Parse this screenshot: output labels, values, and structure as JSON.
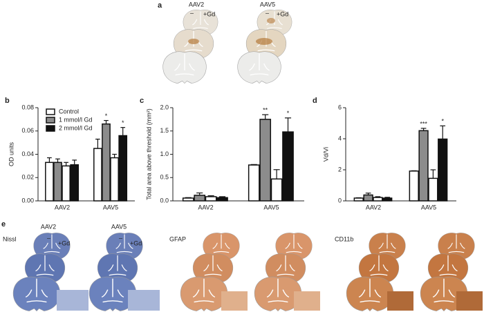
{
  "panel_a": {
    "label": "a",
    "columns": [
      "AAV2",
      "AAV5"
    ],
    "minus": "–",
    "plus": "+Gd"
  },
  "panel_e": {
    "label": "e",
    "columns": [
      "AAV2",
      "AAV5"
    ],
    "stains": [
      "Nissl",
      "GFAP",
      "CD11b"
    ],
    "minus": "–",
    "plus": "+Gd"
  },
  "chart_data": [
    {
      "type": "bar",
      "panel_label": "b",
      "y_label": "OD units",
      "categories": [
        "AAV2",
        "AAV5"
      ],
      "legend": "upper left",
      "ylim": [
        0,
        0.08
      ],
      "yticks": [
        {
          "value": 0,
          "label": "0.00"
        },
        {
          "value": 0.02,
          "label": "0.02"
        },
        {
          "value": 0.04,
          "label": "0.04"
        },
        {
          "value": 0.06,
          "label": "0.06"
        },
        {
          "value": 0.08,
          "label": "0.08"
        }
      ],
      "series": [
        {
          "name": "Control",
          "color": "#ffffff",
          "values": [
            0.033,
            0.045
          ],
          "errors": [
            0.004,
            0.008
          ]
        },
        {
          "name": "1 mmol/l Gd",
          "color": "#8c8c8c",
          "values": [
            0.033,
            0.066
          ],
          "errors": [
            0.003,
            0.003
          ]
        },
        {
          "color": "#ffffff",
          "values": [
            0.03,
            0.037
          ],
          "errors": [
            0.003,
            0.003
          ]
        },
        {
          "name": "2 mmol/l Gd",
          "color": "#111111",
          "values": [
            0.031,
            0.056
          ],
          "errors": [
            0.004,
            0.007
          ]
        }
      ],
      "annotations": [
        {
          "series": 1,
          "index": 1,
          "text": "*"
        },
        {
          "series": 3,
          "index": 1,
          "text": "*"
        }
      ]
    },
    {
      "type": "bar",
      "panel_label": "c",
      "y_label": "Total area above threshold (mm²)",
      "categories": [
        "AAV2",
        "AAV5"
      ],
      "ylim": [
        0,
        2
      ],
      "yticks": [
        {
          "value": 0,
          "label": "0.0"
        },
        {
          "value": 0.5,
          "label": "0.5"
        },
        {
          "value": 1,
          "label": "1.0"
        },
        {
          "value": 1.5,
          "label": "1.5"
        },
        {
          "value": 2,
          "label": "2.0"
        }
      ],
      "series": [
        {
          "color": "#ffffff",
          "values": [
            0.06,
            0.77
          ],
          "errors": [
            0.01,
            0.01
          ]
        },
        {
          "color": "#8c8c8c",
          "values": [
            0.12,
            1.75
          ],
          "errors": [
            0.05,
            0.1
          ]
        },
        {
          "color": "#ffffff",
          "values": [
            0.09,
            0.47
          ],
          "errors": [
            0.02,
            0.2
          ]
        },
        {
          "color": "#111111",
          "values": [
            0.07,
            1.48
          ],
          "errors": [
            0.02,
            0.3
          ]
        }
      ],
      "annotations": [
        {
          "series": 1,
          "index": 1,
          "text": "**"
        },
        {
          "series": 3,
          "index": 1,
          "text": "*"
        }
      ]
    },
    {
      "type": "bar",
      "panel_label": "d",
      "y_label": "Vd/Vi",
      "categories": [
        "AAV2",
        "AAV5"
      ],
      "ylim": [
        0,
        6
      ],
      "yticks": [
        0,
        2,
        4,
        6
      ],
      "series": [
        {
          "color": "#ffffff",
          "values": [
            0.18,
            1.92
          ],
          "errors": [
            0.02,
            0.02
          ]
        },
        {
          "color": "#8c8c8c",
          "values": [
            0.38,
            4.52
          ],
          "errors": [
            0.12,
            0.15
          ]
        },
        {
          "color": "#ffffff",
          "values": [
            0.22,
            1.45
          ],
          "errors": [
            0.05,
            0.55
          ]
        },
        {
          "color": "#111111",
          "values": [
            0.18,
            3.98
          ],
          "errors": [
            0.05,
            0.85
          ]
        }
      ],
      "annotations": [
        {
          "series": 1,
          "index": 1,
          "text": "***"
        },
        {
          "series": 3,
          "index": 1,
          "text": "*"
        }
      ]
    }
  ]
}
